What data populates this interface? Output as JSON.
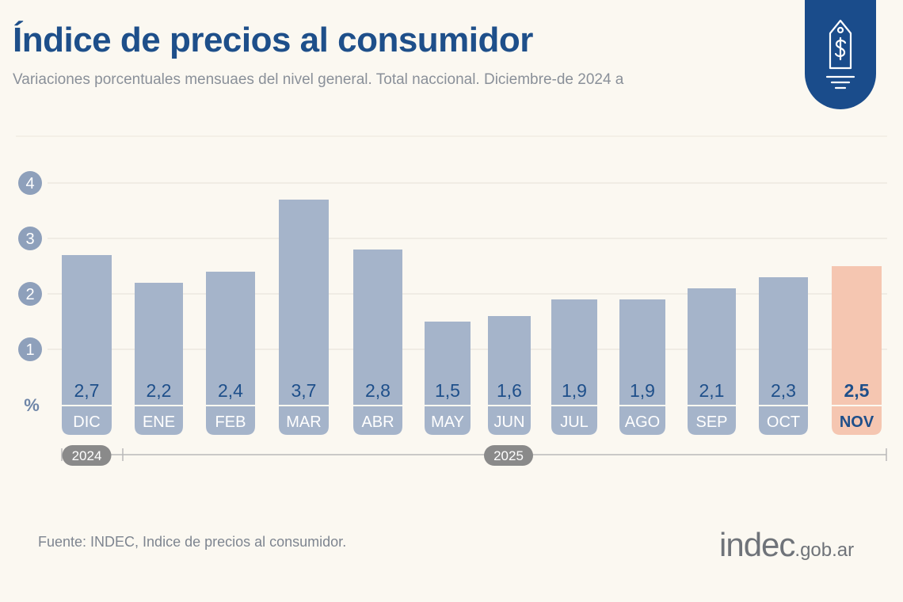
{
  "header": {
    "title": "Índice de precios al consumidor",
    "subtitle": "Variaciones porcentuales mensuaes del nivel general. Total naccional. Diciembre-de 2024 a"
  },
  "badge": {
    "icon": "price-tag-dollar-icon"
  },
  "footer": {
    "source": "Fuente: INDEC, Indice de precios al consumidor.",
    "logo_main": "indec",
    "logo_domain": ".gob.ar"
  },
  "colors": {
    "bar": "#a5b4ca",
    "highlight": "#f5c6b1",
    "text_blue": "#1e4f8a",
    "tick_bg": "#8ea0bb",
    "year_bg": "#8a8a8a"
  },
  "chart_data": {
    "type": "bar",
    "categories": [
      "DIC",
      "ENE",
      "FEB",
      "MAR",
      "ABR",
      "MAY",
      "JUN",
      "JUL",
      "AGO",
      "SEP",
      "OCT",
      "NOV"
    ],
    "values": [
      2.7,
      2.2,
      2.4,
      3.7,
      2.8,
      1.5,
      1.6,
      1.9,
      1.9,
      2.1,
      2.3,
      2.5
    ],
    "data_labels": [
      "2,7",
      "2,2",
      "2,4",
      "3,7",
      "2,8",
      "1,5",
      "1,6",
      "1,9",
      "1,9",
      "2,1",
      "2,3",
      "2,5"
    ],
    "highlight_index": 11,
    "y_ticks": [
      1,
      2,
      3,
      4
    ],
    "y_unit": "%",
    "ylim": [
      0,
      4.5
    ],
    "years": [
      {
        "label": "2024",
        "from": 0,
        "to": 0
      },
      {
        "label": "2025",
        "from": 1,
        "to": 11
      }
    ],
    "grid": true
  }
}
